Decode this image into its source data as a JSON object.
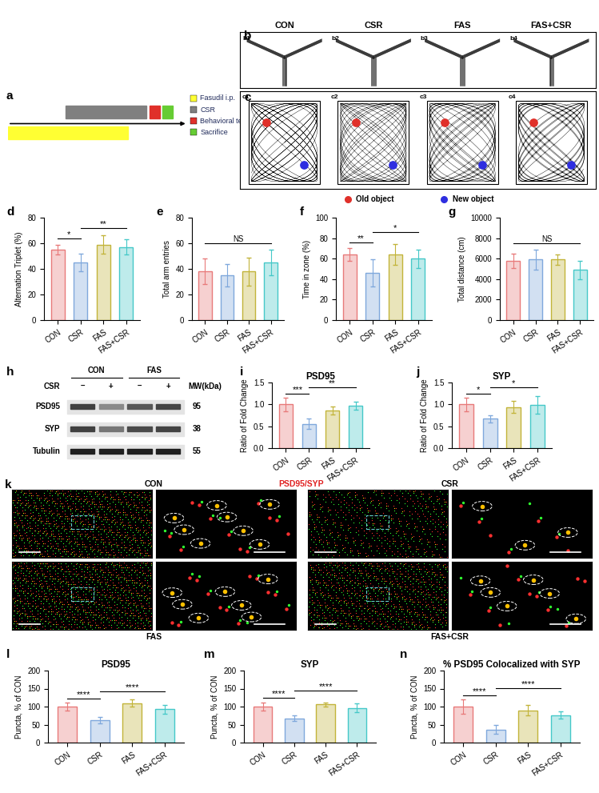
{
  "figure": {
    "a": {
      "panel_label": "a",
      "legend": [
        {
          "label": "Fasudil i.p.",
          "color": "#FFFF33"
        },
        {
          "label": "CSR",
          "color": "#808080"
        },
        {
          "label": "Behavioral test",
          "color": "#E0302A"
        },
        {
          "label": "Sacrifice",
          "color": "#66CC33"
        }
      ]
    },
    "b": {
      "panel_label": "b",
      "groups": [
        "CON",
        "CSR",
        "FAS",
        "FAS+CSR"
      ],
      "sub_labels": [
        "b1",
        "b2",
        "b3",
        "b4"
      ]
    },
    "c": {
      "panel_label": "c",
      "sub_labels": [
        "c1",
        "c2",
        "c3",
        "c4"
      ],
      "legend": [
        {
          "label": "Old object",
          "color": "#E0302A"
        },
        {
          "label": "New object",
          "color": "#2E2EE0"
        }
      ]
    },
    "h": {
      "panel_label": "h",
      "groups": [
        "CON",
        "FAS"
      ],
      "treatment": "CSR",
      "lanes": [
        "–",
        "+",
        "–",
        "+"
      ],
      "mw_header": "MW(kDa)",
      "rows": [
        {
          "name": "PSD95",
          "mw": 95
        },
        {
          "name": "SYP",
          "mw": 38
        },
        {
          "name": "Tubulin",
          "mw": 55
        }
      ]
    },
    "k": {
      "panel_label": "k",
      "stain_label": "PSD95/SYP",
      "groups": [
        "CON",
        "CSR",
        "FAS",
        "FAS+CSR"
      ]
    }
  },
  "chart_data": [
    {
      "panel_label": "d",
      "type": "bar",
      "y_label": "Alternation Triplet (%)",
      "categories": [
        "CON",
        "CSR",
        "FAS",
        "FAS+CSR"
      ],
      "values": [
        55,
        45,
        59,
        57
      ],
      "errors": [
        4,
        7,
        7,
        6
      ],
      "colors": [
        "#E87A7A",
        "#7FA8DC",
        "#C2B43A",
        "#45C8C8"
      ],
      "ylim": [
        0,
        80
      ],
      "yticks": [
        0,
        20,
        40,
        60,
        80
      ],
      "significance": [
        {
          "between": [
            "CON",
            "CSR"
          ],
          "text": "*"
        },
        {
          "between": [
            "CSR",
            "FAS+CSR"
          ],
          "text": "**"
        }
      ]
    },
    {
      "panel_label": "e",
      "type": "bar",
      "y_label": "Total arm entries",
      "categories": [
        "CON",
        "CSR",
        "FAS",
        "FAS+CSR"
      ],
      "values": [
        38,
        35,
        38,
        45
      ],
      "errors": [
        10,
        9,
        11,
        10
      ],
      "colors": [
        "#E87A7A",
        "#7FA8DC",
        "#C2B43A",
        "#45C8C8"
      ],
      "ylim": [
        0,
        80
      ],
      "yticks": [
        0,
        20,
        40,
        60,
        80
      ],
      "significance": [
        {
          "between": [
            "CON",
            "FAS+CSR"
          ],
          "text": "NS"
        }
      ]
    },
    {
      "panel_label": "f",
      "type": "bar",
      "y_label": "Time in zone (%)",
      "categories": [
        "CON",
        "CSR",
        "FAS",
        "FAS+CSR"
      ],
      "values": [
        64,
        46,
        64,
        60
      ],
      "errors": [
        6,
        13,
        10,
        9
      ],
      "colors": [
        "#E87A7A",
        "#7FA8DC",
        "#C2B43A",
        "#45C8C8"
      ],
      "ylim": [
        0,
        100
      ],
      "yticks": [
        0,
        20,
        40,
        60,
        80,
        100
      ],
      "significance": [
        {
          "between": [
            "CON",
            "CSR"
          ],
          "text": "**"
        },
        {
          "between": [
            "CSR",
            "FAS+CSR"
          ],
          "text": "*"
        }
      ]
    },
    {
      "panel_label": "g",
      "type": "bar",
      "y_label": "Total distance (cm)",
      "categories": [
        "CON",
        "CSR",
        "FAS",
        "FAS+CSR"
      ],
      "values": [
        5800,
        5900,
        5900,
        4900
      ],
      "errors": [
        700,
        1000,
        500,
        900
      ],
      "colors": [
        "#E87A7A",
        "#7FA8DC",
        "#C2B43A",
        "#45C8C8"
      ],
      "ylim": [
        0,
        10000
      ],
      "yticks": [
        0,
        2000,
        4000,
        6000,
        8000,
        10000
      ],
      "significance": [
        {
          "between": [
            "CON",
            "FAS+CSR"
          ],
          "text": "NS"
        }
      ]
    },
    {
      "panel_label": "i",
      "type": "bar",
      "title": "PSD95",
      "y_label": "Ratio of Fold Change",
      "categories": [
        "CON",
        "CSR",
        "FAS",
        "FAS+CSR"
      ],
      "values": [
        1.0,
        0.55,
        0.86,
        0.97
      ],
      "errors": [
        0.15,
        0.12,
        0.1,
        0.1
      ],
      "colors": [
        "#E87A7A",
        "#7FA8DC",
        "#C2B43A",
        "#45C8C8"
      ],
      "ylim": [
        0.0,
        1.5
      ],
      "yticks": [
        0.0,
        0.5,
        1.0,
        1.5
      ],
      "significance": [
        {
          "between": [
            "CON",
            "CSR"
          ],
          "text": "***"
        },
        {
          "between": [
            "CSR",
            "FAS+CSR"
          ],
          "text": "**"
        }
      ]
    },
    {
      "panel_label": "j",
      "type": "bar",
      "title": "SYP",
      "y_label": "Ratio of Fold Change",
      "categories": [
        "CON",
        "CSR",
        "FAS",
        "FAS+CSR"
      ],
      "values": [
        1.0,
        0.67,
        0.94,
        0.98
      ],
      "errors": [
        0.15,
        0.08,
        0.14,
        0.2
      ],
      "colors": [
        "#E87A7A",
        "#7FA8DC",
        "#C2B43A",
        "#45C8C8"
      ],
      "ylim": [
        0.0,
        1.5
      ],
      "yticks": [
        0.0,
        0.5,
        1.0,
        1.5
      ],
      "significance": [
        {
          "between": [
            "CON",
            "CSR"
          ],
          "text": "*"
        },
        {
          "between": [
            "CSR",
            "FAS+CSR"
          ],
          "text": "*"
        }
      ]
    },
    {
      "panel_label": "l",
      "type": "bar",
      "title": "PSD95",
      "y_label": "Puncta, % of CON",
      "categories": [
        "CON",
        "CSR",
        "FAS",
        "FAS+CSR"
      ],
      "values": [
        100,
        63,
        110,
        93
      ],
      "errors": [
        11,
        9,
        10,
        12
      ],
      "colors": [
        "#E87A7A",
        "#7FA8DC",
        "#C2B43A",
        "#45C8C8"
      ],
      "ylim": [
        0,
        200
      ],
      "yticks": [
        0,
        50,
        100,
        150,
        200
      ],
      "significance": [
        {
          "between": [
            "CON",
            "CSR"
          ],
          "text": "****"
        },
        {
          "between": [
            "CSR",
            "FAS+CSR"
          ],
          "text": "****"
        }
      ]
    },
    {
      "panel_label": "m",
      "type": "bar",
      "title": "SYP",
      "y_label": "Puncta, % of CON",
      "categories": [
        "CON",
        "CSR",
        "FAS",
        "FAS+CSR"
      ],
      "values": [
        100,
        67,
        106,
        96
      ],
      "errors": [
        12,
        8,
        6,
        12
      ],
      "colors": [
        "#E87A7A",
        "#7FA8DC",
        "#C2B43A",
        "#45C8C8"
      ],
      "ylim": [
        0,
        200
      ],
      "yticks": [
        0,
        50,
        100,
        150,
        200
      ],
      "significance": [
        {
          "between": [
            "CON",
            "CSR"
          ],
          "text": "****"
        },
        {
          "between": [
            "CSR",
            "FAS+CSR"
          ],
          "text": "****"
        }
      ]
    },
    {
      "panel_label": "n",
      "type": "bar",
      "title": "% PSD95 Colocalized with SYP",
      "y_label": "Puncta, % of CON",
      "categories": [
        "CON",
        "CSR",
        "FAS",
        "FAS+CSR"
      ],
      "values": [
        100,
        36,
        90,
        76
      ],
      "errors": [
        20,
        12,
        15,
        10
      ],
      "colors": [
        "#E87A7A",
        "#7FA8DC",
        "#C2B43A",
        "#45C8C8"
      ],
      "ylim": [
        0,
        200
      ],
      "yticks": [
        0,
        50,
        100,
        150,
        200
      ],
      "significance": [
        {
          "between": [
            "CON",
            "CSR"
          ],
          "text": "****"
        },
        {
          "between": [
            "CSR",
            "FAS+CSR"
          ],
          "text": "****"
        }
      ]
    }
  ]
}
